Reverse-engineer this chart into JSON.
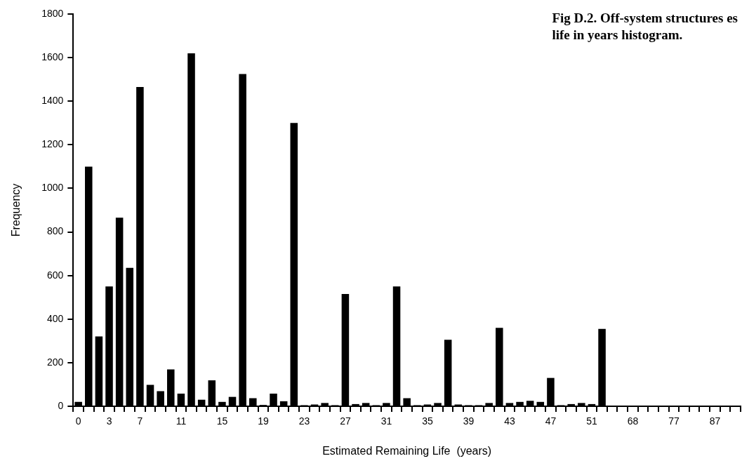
{
  "chart_data": {
    "type": "bar",
    "title": "Fig D.2.  Off-system structures es\nlife in years histogram.",
    "xlabel": "Estimated Remaining Life  (years)",
    "ylabel": "Frequency",
    "categories": [
      "0",
      null,
      null,
      "3",
      null,
      null,
      "7",
      null,
      null,
      null,
      "11",
      null,
      null,
      null,
      "15",
      null,
      null,
      null,
      "19",
      null,
      null,
      null,
      "23",
      null,
      null,
      null,
      "27",
      null,
      null,
      null,
      "31",
      null,
      null,
      null,
      "35",
      null,
      null,
      null,
      "39",
      null,
      null,
      null,
      "43",
      null,
      null,
      null,
      "47",
      null,
      null,
      null,
      "51",
      null,
      null,
      null,
      "68",
      null,
      null,
      null,
      "77",
      null,
      null,
      null,
      "87",
      null,
      null
    ],
    "values": [
      20,
      1100,
      320,
      550,
      865,
      635,
      1465,
      98,
      69,
      169,
      58,
      1620,
      30,
      119,
      20,
      43,
      1525,
      37,
      6,
      58,
      23,
      1300,
      5,
      8,
      15,
      5,
      515,
      10,
      15,
      5,
      15,
      550,
      37,
      5,
      8,
      15,
      305,
      8,
      5,
      5,
      15,
      360,
      15,
      20,
      25,
      20,
      130,
      5,
      10,
      15,
      10,
      355,
      3,
      0,
      0,
      0,
      0,
      0,
      0,
      0,
      0,
      0,
      0,
      0,
      0
    ],
    "color": "#000000",
    "ylim": [
      0,
      1800
    ],
    "yticks": [
      0,
      200,
      400,
      600,
      800,
      1000,
      1200,
      1400,
      1600,
      1800
    ]
  }
}
